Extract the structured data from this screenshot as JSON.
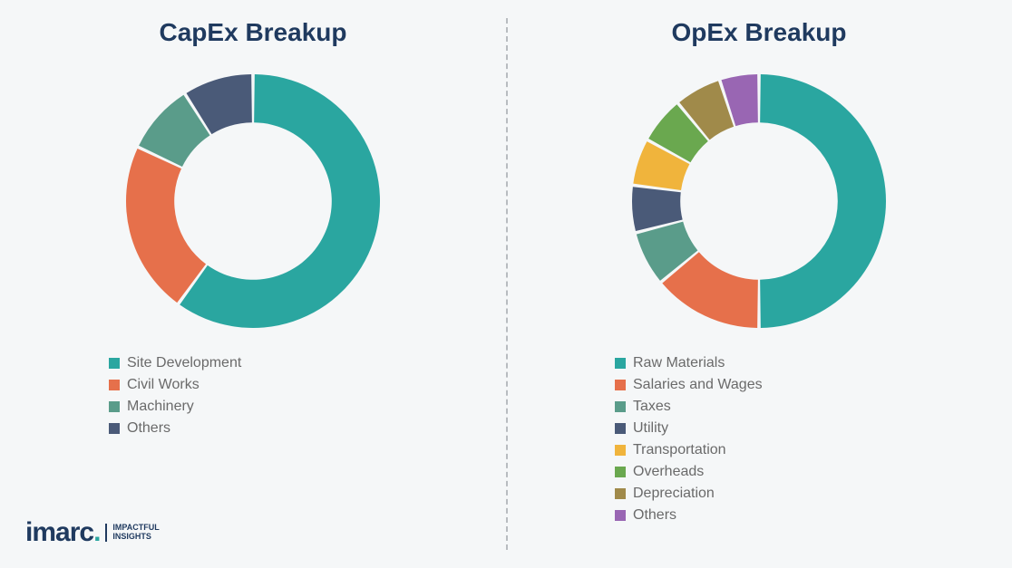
{
  "background_color": "#f5f7f8",
  "title_color": "#1f3a5f",
  "title_fontsize": 28,
  "legend_font_color": "#6a6a6a",
  "legend_fontsize": 16,
  "divider_color": "#b8bcc0",
  "donut_inner_radius_ratio": 0.62,
  "donut_outer_radius": 140,
  "gap_degrees": 1.5,
  "capex": {
    "title": "CapEx Breakup",
    "type": "donut",
    "slices": [
      {
        "label": "Site Development",
        "value": 60,
        "color": "#2aa6a0"
      },
      {
        "label": "Civil Works",
        "value": 22,
        "color": "#e6704b"
      },
      {
        "label": "Machinery",
        "value": 9,
        "color": "#5a9c8a"
      },
      {
        "label": "Others",
        "value": 9,
        "color": "#4a5a78"
      }
    ]
  },
  "opex": {
    "title": "OpEx Breakup",
    "type": "donut",
    "slices": [
      {
        "label": "Raw Materials",
        "value": 50,
        "color": "#2aa6a0"
      },
      {
        "label": "Salaries and Wages",
        "value": 14,
        "color": "#e6704b"
      },
      {
        "label": "Taxes",
        "value": 7,
        "color": "#5a9c8a"
      },
      {
        "label": "Utility",
        "value": 6,
        "color": "#4a5a78"
      },
      {
        "label": "Transportation",
        "value": 6,
        "color": "#f0b43c"
      },
      {
        "label": "Overheads",
        "value": 6,
        "color": "#6aa84f"
      },
      {
        "label": "Depreciation",
        "value": 6,
        "color": "#a08a4a"
      },
      {
        "label": "Others",
        "value": 5,
        "color": "#9966b3"
      }
    ]
  },
  "logo": {
    "text": "imarc",
    "tagline_line1": "IMPACTFUL",
    "tagline_line2": "INSIGHTS"
  }
}
